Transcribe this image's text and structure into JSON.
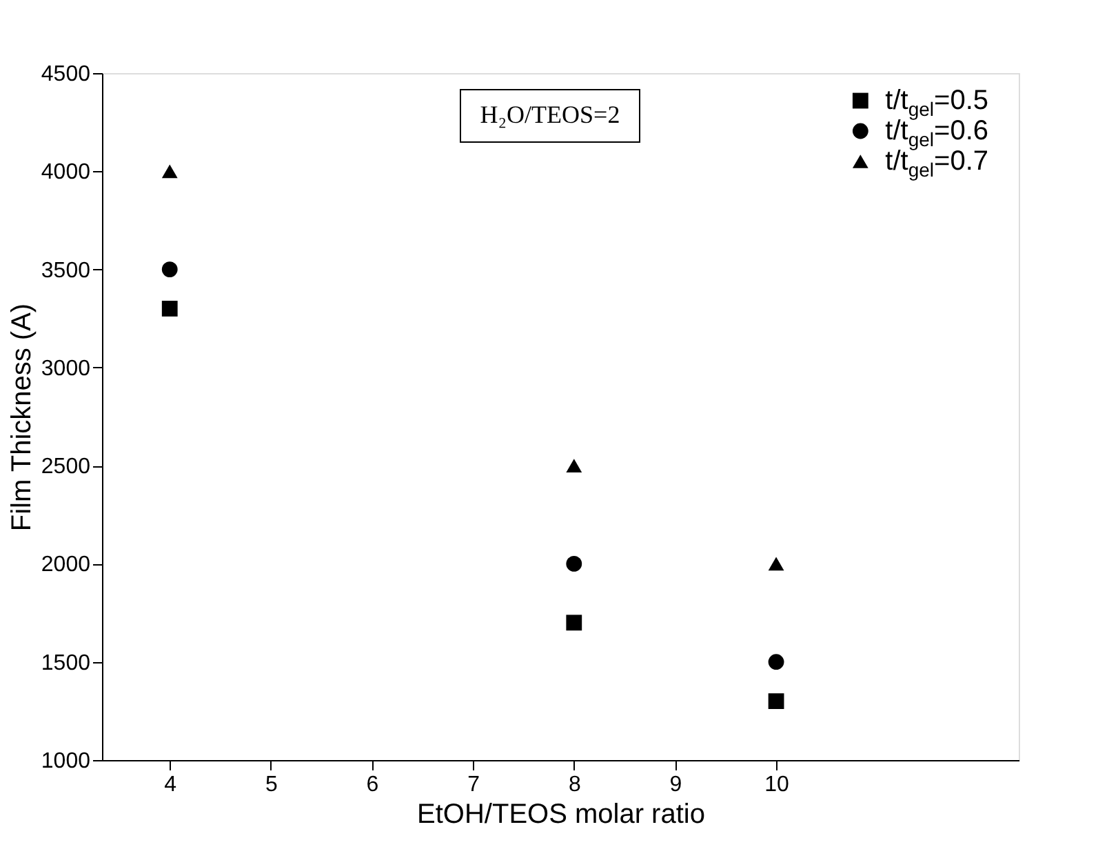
{
  "chart_data": {
    "type": "scatter",
    "xlabel": "EtOH/TEOS molar ratio",
    "ylabel": "Film Thickness (A)",
    "x": [
      4,
      8,
      10
    ],
    "series": [
      {
        "name": "t/t$_{gel}$=0.5",
        "color": "#000000",
        "marker": "square",
        "values": [
          3300,
          1700,
          1300
        ]
      },
      {
        "name": "t/t$_{gel}$=0.6",
        "color": "#000000",
        "marker": "circle",
        "values": [
          3500,
          2000,
          1500
        ]
      },
      {
        "name": "t/t$_{gel}$=0.7",
        "color": "#000000",
        "marker": "triangle",
        "values": [
          4000,
          2500,
          2000
        ]
      }
    ],
    "annotations": [
      "H₂O/TEOS=2"
    ],
    "xlim": [
      3.33,
      12.4
    ],
    "xticks": [
      4,
      5,
      6,
      7,
      8,
      9,
      10
    ],
    "ylim": [
      1000,
      4500
    ],
    "yticks": [
      1000,
      1500,
      2000,
      2500,
      3000,
      3500,
      4000,
      4500
    ],
    "grid": false,
    "legend": "top right"
  }
}
